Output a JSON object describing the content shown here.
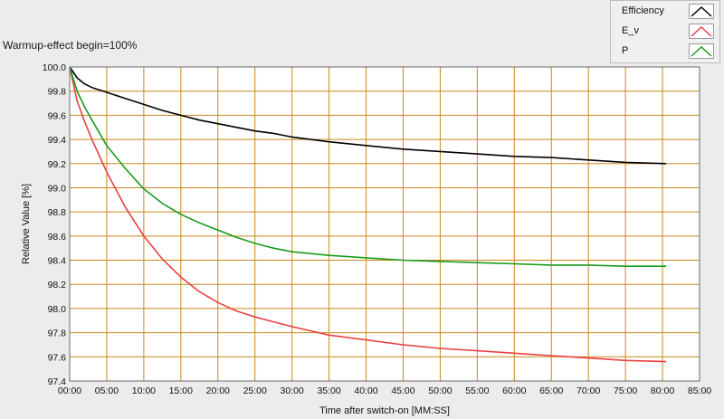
{
  "chart_data": {
    "type": "line",
    "title": "Warmup-effect begin=100%",
    "xlabel": "Time after switch-on [MM:SS]",
    "ylabel": "Relative Value [%]",
    "xlim": [
      0,
      85
    ],
    "ylim": [
      97.4,
      100.0
    ],
    "x_tick_labels": [
      "00:00",
      "05:00",
      "10:00",
      "15:00",
      "20:00",
      "25:00",
      "30:00",
      "35:00",
      "40:00",
      "45:00",
      "50:00",
      "55:00",
      "60:00",
      "65:00",
      "70:00",
      "75:00",
      "80:00",
      "85:00"
    ],
    "y_tick_labels": [
      "100.0",
      "99.8",
      "99.6",
      "99.4",
      "99.2",
      "99.0",
      "98.8",
      "98.6",
      "98.4",
      "98.2",
      "98.0",
      "97.8",
      "97.6",
      "97.4"
    ],
    "grid": true,
    "grid_color": "#c8881a",
    "plot_background": "#ffffff",
    "legend_position": "top-right",
    "x": [
      0,
      1,
      2,
      3,
      5,
      7.5,
      10,
      12.5,
      15,
      17.5,
      20,
      22.5,
      25,
      27.5,
      30,
      35,
      40,
      45,
      50,
      55,
      60,
      65,
      70,
      75,
      80.5
    ],
    "series": [
      {
        "name": "Efficiency",
        "color": "#000000",
        "values": [
          100.0,
          99.91,
          99.86,
          99.83,
          99.79,
          99.74,
          99.69,
          99.64,
          99.6,
          99.56,
          99.53,
          99.5,
          99.47,
          99.45,
          99.42,
          99.38,
          99.35,
          99.32,
          99.3,
          99.28,
          99.26,
          99.25,
          99.23,
          99.21,
          99.2
        ]
      },
      {
        "name": "E_v",
        "color": "#e84040",
        "values": [
          100.0,
          99.72,
          99.55,
          99.4,
          99.13,
          98.84,
          98.6,
          98.41,
          98.26,
          98.14,
          98.05,
          97.98,
          97.93,
          97.89,
          97.85,
          97.78,
          97.74,
          97.7,
          97.67,
          97.65,
          97.63,
          97.61,
          97.59,
          97.57,
          97.56
        ]
      },
      {
        "name": "P",
        "color": "#1a9a1a",
        "values": [
          100.0,
          99.8,
          99.67,
          99.56,
          99.35,
          99.16,
          98.99,
          98.87,
          98.78,
          98.71,
          98.65,
          98.59,
          98.54,
          98.5,
          98.47,
          98.44,
          98.42,
          98.4,
          98.39,
          98.38,
          98.37,
          98.36,
          98.36,
          98.35,
          98.35
        ]
      }
    ]
  }
}
